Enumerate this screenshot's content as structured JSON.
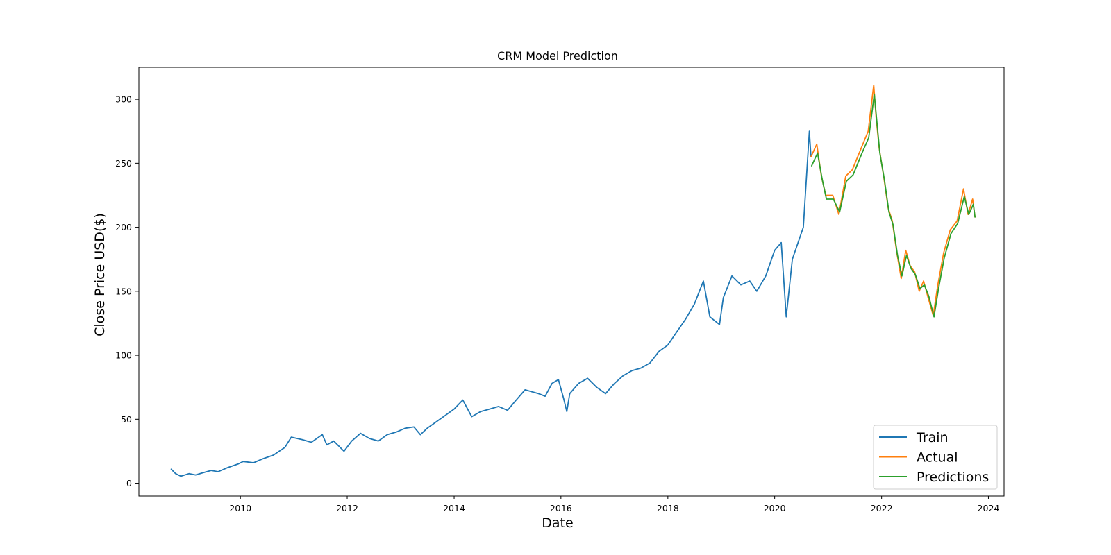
{
  "chart_data": {
    "type": "line",
    "title": "CRM Model Prediction",
    "xlabel": "Date",
    "ylabel": "Close Price USD($)",
    "xlim": [
      "2008-02-07",
      "2024-04-17"
    ],
    "ylim": [
      -10,
      325
    ],
    "x_ticks": [
      "2010",
      "2012",
      "2014",
      "2016",
      "2018",
      "2020",
      "2022",
      "2024"
    ],
    "y_ticks": [
      "0",
      "50",
      "100",
      "150",
      "200",
      "250",
      "300"
    ],
    "grid": false,
    "legend_position": "lower-right",
    "series": [
      {
        "name": "Train",
        "color": "#1f77b4",
        "points": [
          [
            "2008-09-15",
            11
          ],
          [
            "2008-10-15",
            7.5
          ],
          [
            "2008-11-20",
            5.5
          ],
          [
            "2009-01-15",
            7.5
          ],
          [
            "2009-03-01",
            6.5
          ],
          [
            "2009-04-15",
            8
          ],
          [
            "2009-06-15",
            10
          ],
          [
            "2009-08-01",
            9
          ],
          [
            "2009-10-01",
            12
          ],
          [
            "2009-12-15",
            15
          ],
          [
            "2010-01-20",
            17
          ],
          [
            "2010-04-01",
            16
          ],
          [
            "2010-06-01",
            19
          ],
          [
            "2010-08-15",
            22
          ],
          [
            "2010-11-01",
            28
          ],
          [
            "2010-12-15",
            36
          ],
          [
            "2011-03-01",
            34
          ],
          [
            "2011-05-01",
            32
          ],
          [
            "2011-07-15",
            38
          ],
          [
            "2011-08-15",
            30
          ],
          [
            "2011-10-01",
            33
          ],
          [
            "2011-12-10",
            25
          ],
          [
            "2012-02-01",
            33
          ],
          [
            "2012-04-01",
            39
          ],
          [
            "2012-06-01",
            35
          ],
          [
            "2012-08-01",
            33
          ],
          [
            "2012-10-01",
            38
          ],
          [
            "2012-12-01",
            40
          ],
          [
            "2013-02-01",
            43
          ],
          [
            "2013-04-01",
            44
          ],
          [
            "2013-05-15",
            38
          ],
          [
            "2013-07-01",
            43
          ],
          [
            "2013-09-01",
            48
          ],
          [
            "2013-11-01",
            53
          ],
          [
            "2014-01-01",
            58
          ],
          [
            "2014-03-01",
            65
          ],
          [
            "2014-05-01",
            52
          ],
          [
            "2014-07-01",
            56
          ],
          [
            "2014-09-01",
            58
          ],
          [
            "2014-11-01",
            60
          ],
          [
            "2015-01-01",
            57
          ],
          [
            "2015-03-01",
            65
          ],
          [
            "2015-05-01",
            73
          ],
          [
            "2015-08-01",
            70
          ],
          [
            "2015-09-15",
            68
          ],
          [
            "2015-11-01",
            78
          ],
          [
            "2015-12-15",
            81
          ],
          [
            "2016-01-20",
            66
          ],
          [
            "2016-02-10",
            56
          ],
          [
            "2016-03-01",
            70
          ],
          [
            "2016-05-01",
            78
          ],
          [
            "2016-07-01",
            82
          ],
          [
            "2016-09-01",
            75
          ],
          [
            "2016-11-01",
            70
          ],
          [
            "2017-01-01",
            78
          ],
          [
            "2017-03-01",
            84
          ],
          [
            "2017-05-01",
            88
          ],
          [
            "2017-07-01",
            90
          ],
          [
            "2017-09-01",
            94
          ],
          [
            "2017-11-01",
            103
          ],
          [
            "2018-01-01",
            108
          ],
          [
            "2018-03-01",
            118
          ],
          [
            "2018-05-01",
            128
          ],
          [
            "2018-07-01",
            140
          ],
          [
            "2018-09-01",
            158
          ],
          [
            "2018-10-15",
            130
          ],
          [
            "2018-12-20",
            124
          ],
          [
            "2019-01-15",
            145
          ],
          [
            "2019-03-15",
            162
          ],
          [
            "2019-05-15",
            155
          ],
          [
            "2019-07-15",
            158
          ],
          [
            "2019-09-01",
            150
          ],
          [
            "2019-11-01",
            162
          ],
          [
            "2020-01-01",
            182
          ],
          [
            "2020-02-15",
            188
          ],
          [
            "2020-03-20",
            130
          ],
          [
            "2020-05-01",
            175
          ],
          [
            "2020-06-15",
            190
          ],
          [
            "2020-07-15",
            200
          ],
          [
            "2020-08-25",
            275
          ],
          [
            "2020-09-05",
            255
          ]
        ]
      },
      {
        "name": "Actual",
        "color": "#ff7f0e",
        "points": [
          [
            "2020-09-05",
            255
          ],
          [
            "2020-10-15",
            265
          ],
          [
            "2020-11-15",
            240
          ],
          [
            "2020-12-15",
            225
          ],
          [
            "2021-02-01",
            225
          ],
          [
            "2021-03-15",
            210
          ],
          [
            "2021-05-01",
            240
          ],
          [
            "2021-06-15",
            245
          ],
          [
            "2021-08-15",
            262
          ],
          [
            "2021-10-01",
            275
          ],
          [
            "2021-11-08",
            311
          ],
          [
            "2021-11-25",
            285
          ],
          [
            "2021-12-15",
            262
          ],
          [
            "2022-01-15",
            240
          ],
          [
            "2022-02-15",
            215
          ],
          [
            "2022-03-15",
            205
          ],
          [
            "2022-04-15",
            180
          ],
          [
            "2022-05-15",
            160
          ],
          [
            "2022-06-15",
            182
          ],
          [
            "2022-07-15",
            170
          ],
          [
            "2022-08-15",
            165
          ],
          [
            "2022-09-15",
            150
          ],
          [
            "2022-10-15",
            158
          ],
          [
            "2022-11-15",
            145
          ],
          [
            "2022-12-20",
            131
          ],
          [
            "2023-01-20",
            155
          ],
          [
            "2023-03-01",
            180
          ],
          [
            "2023-04-15",
            198
          ],
          [
            "2023-06-01",
            205
          ],
          [
            "2023-07-15",
            230
          ],
          [
            "2023-08-15",
            210
          ],
          [
            "2023-09-15",
            222
          ],
          [
            "2023-10-01",
            208
          ]
        ]
      },
      {
        "name": "Predictions",
        "color": "#2ca02c",
        "points": [
          [
            "2020-09-10",
            248
          ],
          [
            "2020-10-20",
            258
          ],
          [
            "2020-11-20",
            238
          ],
          [
            "2020-12-20",
            222
          ],
          [
            "2021-02-05",
            222
          ],
          [
            "2021-03-20",
            212
          ],
          [
            "2021-05-05",
            236
          ],
          [
            "2021-06-20",
            241
          ],
          [
            "2021-08-20",
            258
          ],
          [
            "2021-10-05",
            270
          ],
          [
            "2021-11-12",
            304
          ],
          [
            "2021-11-30",
            282
          ],
          [
            "2021-12-20",
            258
          ],
          [
            "2022-01-20",
            237
          ],
          [
            "2022-02-20",
            212
          ],
          [
            "2022-03-20",
            202
          ],
          [
            "2022-04-20",
            178
          ],
          [
            "2022-05-20",
            162
          ],
          [
            "2022-06-20",
            178
          ],
          [
            "2022-07-20",
            168
          ],
          [
            "2022-08-20",
            163
          ],
          [
            "2022-09-20",
            152
          ],
          [
            "2022-10-20",
            155
          ],
          [
            "2022-11-20",
            146
          ],
          [
            "2022-12-25",
            130
          ],
          [
            "2023-01-25",
            152
          ],
          [
            "2023-03-05",
            176
          ],
          [
            "2023-04-20",
            195
          ],
          [
            "2023-06-05",
            203
          ],
          [
            "2023-07-20",
            224
          ],
          [
            "2023-08-20",
            210
          ],
          [
            "2023-09-20",
            218
          ],
          [
            "2023-10-01",
            208
          ]
        ]
      }
    ]
  }
}
